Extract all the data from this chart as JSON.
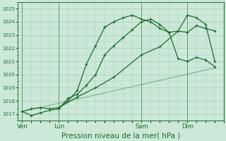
{
  "bg_color": "#cce8d8",
  "grid_color": "#aaccb8",
  "line_color": "#1a6e2a",
  "xlabel": "Pression niveau de la mer( hPa )",
  "xlabel_fontsize": 7.5,
  "ylim": [
    1016.5,
    1025.5
  ],
  "yticks": [
    1017,
    1018,
    1019,
    1020,
    1021,
    1022,
    1023,
    1024,
    1025
  ],
  "xtick_labels": [
    "Ven",
    "Lun",
    "Sam",
    "Dim"
  ],
  "xtick_positions": [
    0,
    4,
    13,
    18
  ],
  "vline_positions": [
    0,
    4,
    13,
    18
  ],
  "xlim": [
    -0.5,
    22
  ],
  "line1_x": [
    0,
    1,
    2,
    3,
    4,
    5,
    6,
    7,
    8,
    9,
    10,
    11,
    12,
    13,
    14,
    15,
    16,
    17,
    18,
    19,
    20,
    21
  ],
  "line1_y": [
    1017.2,
    1016.9,
    1017.1,
    1017.3,
    1017.4,
    1018.2,
    1018.5,
    1019.2,
    1020.0,
    1021.5,
    1022.2,
    1022.8,
    1023.4,
    1024.0,
    1024.2,
    1023.8,
    1023.2,
    1023.3,
    1023.2,
    1023.7,
    1023.5,
    1023.3
  ],
  "line1_marker_x": [
    0,
    1,
    2,
    3,
    4,
    5,
    6,
    7,
    8,
    9,
    10,
    11,
    12,
    13,
    14,
    15,
    16,
    17,
    18,
    19,
    20,
    21
  ],
  "line1_marker_y": [
    1017.2,
    1016.9,
    1017.1,
    1017.3,
    1017.4,
    1018.2,
    1018.5,
    1019.2,
    1020.0,
    1021.5,
    1022.2,
    1022.8,
    1023.4,
    1024.0,
    1024.2,
    1023.8,
    1023.2,
    1023.3,
    1023.2,
    1023.7,
    1023.5,
    1023.3
  ],
  "line2_x": [
    0,
    1,
    2,
    3,
    4,
    5,
    6,
    7,
    8,
    9,
    10,
    11,
    12,
    13,
    14,
    15,
    16,
    17,
    18,
    19,
    20,
    21
  ],
  "line2_y": [
    1017.2,
    1017.4,
    1017.5,
    1017.4,
    1017.5,
    1018.0,
    1018.8,
    1020.8,
    1022.2,
    1023.6,
    1024.0,
    1024.3,
    1024.5,
    1024.2,
    1024.0,
    1023.5,
    1023.2,
    1021.2,
    1021.0,
    1021.3,
    1021.1,
    1020.6
  ],
  "line3_x": [
    4,
    6,
    8,
    10,
    13,
    15,
    17,
    18,
    19,
    20,
    21
  ],
  "line3_y": [
    1017.5,
    1018.3,
    1019.0,
    1019.8,
    1021.5,
    1022.1,
    1023.3,
    1024.5,
    1024.3,
    1023.8,
    1021.0
  ],
  "line4_x": [
    0,
    21
  ],
  "line4_y": [
    1017.2,
    1020.5
  ]
}
